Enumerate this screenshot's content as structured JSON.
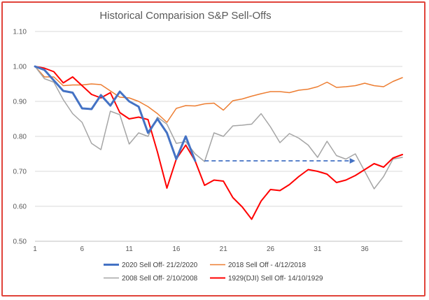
{
  "chart_data": {
    "type": "line",
    "title": "Historical Comparision S&P Sell-Offs",
    "xlabel": "",
    "ylabel": "",
    "xlim": [
      1,
      40
    ],
    "ylim": [
      0.5,
      1.1
    ],
    "y_ticks": [
      "0.50",
      "0.60",
      "0.70",
      "0.80",
      "0.90",
      "1.00",
      "1.10"
    ],
    "y_tick_values": [
      0.5,
      0.6,
      0.7,
      0.8,
      0.9,
      1.0,
      1.1
    ],
    "x_ticks": [
      "1",
      "6",
      "11",
      "16",
      "21",
      "26",
      "31",
      "36"
    ],
    "x_tick_values": [
      1,
      6,
      11,
      16,
      21,
      26,
      31,
      36
    ],
    "grid": "horizontal",
    "legend_position": "bottom",
    "series": [
      {
        "name": "2020 Sell Off- 21/2/2020",
        "color": "#4472c4",
        "width": 3,
        "x": [
          1,
          2,
          3,
          4,
          5,
          6,
          7,
          8,
          9,
          10,
          11,
          12,
          13,
          14,
          15,
          16,
          17,
          18
        ],
        "values": [
          1.0,
          0.99,
          0.96,
          0.93,
          0.925,
          0.88,
          0.878,
          0.918,
          0.888,
          0.928,
          0.9,
          0.885,
          0.81,
          0.85,
          0.81,
          0.735,
          0.8,
          0.73
        ]
      },
      {
        "name": "2018 Sell Off - 4/12/2018",
        "color": "#ed7d31",
        "width": 1.5,
        "x": [
          1,
          2,
          3,
          4,
          5,
          6,
          7,
          8,
          9,
          10,
          11,
          12,
          13,
          14,
          15,
          16,
          17,
          18,
          19,
          20,
          21,
          22,
          23,
          24,
          25,
          26,
          27,
          28,
          29,
          30,
          31,
          32,
          33,
          34,
          35,
          36,
          37,
          38,
          39,
          40
        ],
        "values": [
          1.0,
          0.97,
          0.97,
          0.945,
          0.947,
          0.947,
          0.95,
          0.948,
          0.93,
          0.912,
          0.91,
          0.9,
          0.885,
          0.865,
          0.84,
          0.88,
          0.888,
          0.887,
          0.893,
          0.895,
          0.875,
          0.902,
          0.907,
          0.915,
          0.922,
          0.928,
          0.928,
          0.925,
          0.932,
          0.935,
          0.942,
          0.955,
          0.94,
          0.942,
          0.945,
          0.952,
          0.945,
          0.942,
          0.957,
          0.968
        ]
      },
      {
        "name": "2008 Sell Off- 2/10/2008",
        "color": "#a5a5a5",
        "width": 1.5,
        "x": [
          1,
          2,
          3,
          4,
          5,
          6,
          7,
          8,
          9,
          10,
          11,
          12,
          13,
          14,
          15,
          16,
          17,
          18,
          19,
          20,
          21,
          22,
          23,
          24,
          25,
          26,
          27,
          28,
          29,
          30,
          31,
          32,
          33,
          34,
          35,
          36,
          37,
          38,
          39,
          40
        ],
        "values": [
          1.0,
          0.965,
          0.955,
          0.905,
          0.865,
          0.84,
          0.78,
          0.762,
          0.872,
          0.862,
          0.778,
          0.81,
          0.8,
          0.855,
          0.835,
          0.78,
          0.785,
          0.75,
          0.728,
          0.81,
          0.8,
          0.83,
          0.832,
          0.835,
          0.865,
          0.827,
          0.782,
          0.808,
          0.795,
          0.775,
          0.74,
          0.786,
          0.745,
          0.735,
          0.75,
          0.7,
          0.65,
          0.685,
          0.735,
          0.74
        ]
      },
      {
        "name": "1929(DJI) Sell Off- 14/10/1929",
        "color": "#ff0000",
        "width": 2,
        "x": [
          1,
          2,
          3,
          4,
          5,
          6,
          7,
          8,
          9,
          10,
          11,
          12,
          13,
          14,
          15,
          16,
          17,
          18,
          19,
          20,
          21,
          22,
          23,
          24,
          25,
          26,
          27,
          28,
          29,
          30,
          31,
          32,
          33,
          34,
          35,
          36,
          37,
          38,
          39,
          40
        ],
        "values": [
          1.0,
          0.995,
          0.985,
          0.953,
          0.97,
          0.945,
          0.92,
          0.91,
          0.925,
          0.868,
          0.85,
          0.855,
          0.848,
          0.755,
          0.652,
          0.735,
          0.775,
          0.73,
          0.66,
          0.675,
          0.672,
          0.625,
          0.598,
          0.563,
          0.615,
          0.648,
          0.645,
          0.662,
          0.685,
          0.705,
          0.7,
          0.692,
          0.668,
          0.675,
          0.688,
          0.705,
          0.722,
          0.712,
          0.738,
          0.748
        ]
      }
    ],
    "annotation_arrow": {
      "style": "dashed",
      "color": "#4472c4",
      "from": [
        19,
        0.73
      ],
      "to": [
        35,
        0.73
      ]
    }
  }
}
